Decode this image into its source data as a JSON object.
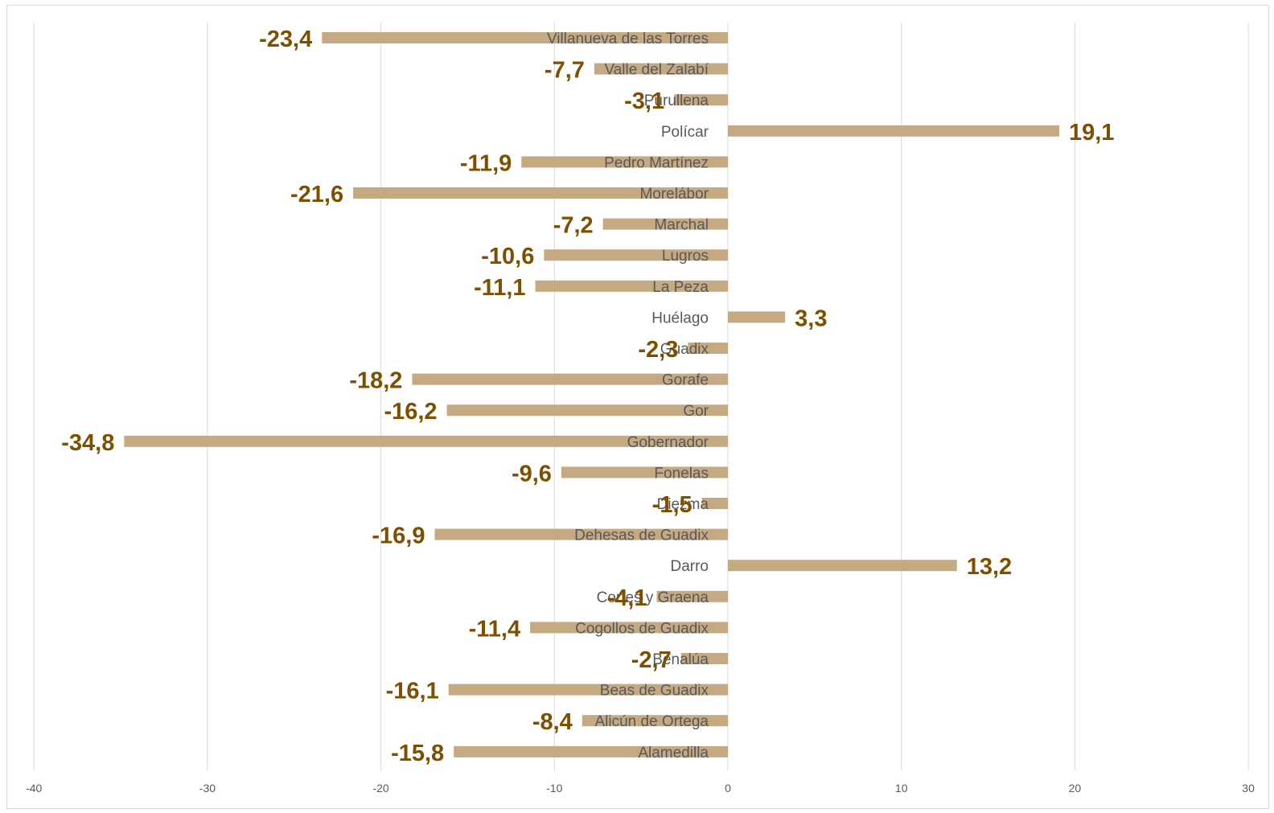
{
  "chart_data": {
    "type": "bar",
    "orientation": "horizontal",
    "title": "",
    "xlabel": "",
    "ylabel": "",
    "xlim": [
      -40,
      30
    ],
    "xticks": [
      -40,
      -30,
      -20,
      -10,
      0,
      10,
      20,
      30
    ],
    "grid": true,
    "bar_color": "#c4a982",
    "label_color": "#7f4f00",
    "categories": [
      "Villanueva de las Torres",
      "Valle del Zalabí",
      "Purullena",
      "Polícar",
      "Pedro Martínez",
      "Morelábor",
      "Marchal",
      "Lugros",
      "La Peza",
      "Huélago",
      "Guadix",
      "Gorafe",
      "Gor",
      "Gobernador",
      "Fonelas",
      "Diezma",
      "Dehesas de Guadix",
      "Darro",
      "Cortes y Graena",
      "Cogollos de Guadix",
      "Benalúa",
      "Beas de Guadix",
      "Alicún de Ortega",
      "Alamedilla"
    ],
    "values": [
      -23.4,
      -7.7,
      -3.1,
      19.1,
      -11.9,
      -21.6,
      -7.2,
      -10.6,
      -11.1,
      3.3,
      -2.3,
      -18.2,
      -16.2,
      -34.8,
      -9.6,
      -1.5,
      -16.9,
      13.2,
      -4.1,
      -11.4,
      -2.7,
      -16.1,
      -8.4,
      -15.8
    ],
    "value_labels": [
      "-23,4",
      "-7,7",
      "-3,1",
      "19,1",
      "-11,9",
      "-21,6",
      "-7,2",
      "-10,6",
      "-11,1",
      "3,3",
      "-2,3",
      "-18,2",
      "-16,2",
      "-34,8",
      "-9,6",
      "-1,5",
      "-16,9",
      "13,2",
      "-4,1",
      "-11,4",
      "-2,7",
      "-16,1",
      "-8,4",
      "-15,8"
    ],
    "tick_labels": [
      "-40",
      "-30",
      "-20",
      "-10",
      "0",
      "10",
      "20",
      "30"
    ]
  }
}
